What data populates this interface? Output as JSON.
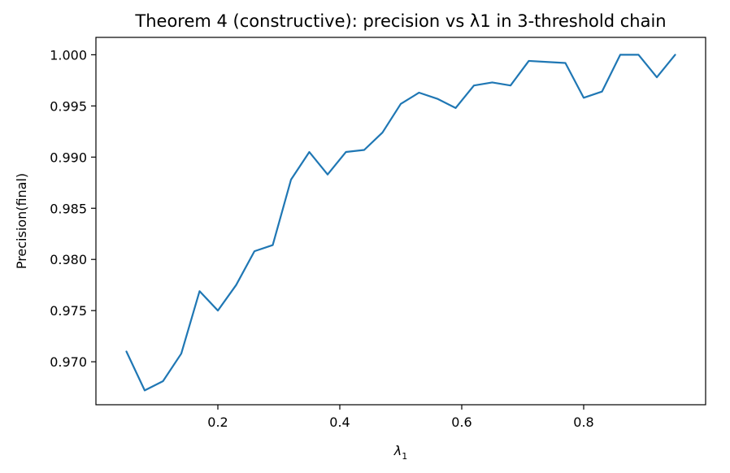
{
  "chart_data": {
    "type": "line",
    "title": "Theorem 4 (constructive): precision vs λ1 in 3-threshold chain",
    "xlabel": "λ",
    "xlabel_sub": "1",
    "ylabel": "Precision(final)",
    "xlim": [
      0.0,
      1.0
    ],
    "ylim": [
      0.9658,
      1.0017
    ],
    "xticks": [
      0.2,
      0.4,
      0.6,
      0.8
    ],
    "xtick_labels": [
      "0.2",
      "0.4",
      "0.6",
      "0.8"
    ],
    "yticks": [
      0.97,
      0.975,
      0.98,
      0.985,
      0.99,
      0.995,
      1.0
    ],
    "ytick_labels": [
      "0.970",
      "0.975",
      "0.980",
      "0.985",
      "0.990",
      "0.995",
      "1.000"
    ],
    "grid": false,
    "series": [
      {
        "color": "#1f77b4",
        "x": [
          0.05,
          0.08,
          0.11,
          0.14,
          0.17,
          0.2,
          0.23,
          0.26,
          0.29,
          0.32,
          0.35,
          0.38,
          0.41,
          0.44,
          0.47,
          0.5,
          0.53,
          0.56,
          0.59,
          0.62,
          0.65,
          0.68,
          0.71,
          0.74,
          0.77,
          0.8,
          0.83,
          0.86,
          0.89,
          0.92,
          0.95
        ],
        "y": [
          0.971,
          0.9672,
          0.9681,
          0.9708,
          0.9769,
          0.975,
          0.9775,
          0.9808,
          0.9814,
          0.9878,
          0.9905,
          0.9883,
          0.9905,
          0.9907,
          0.9924,
          0.9952,
          0.9963,
          0.9957,
          0.9948,
          0.997,
          0.9973,
          0.997,
          0.9994,
          0.9993,
          0.9992,
          0.9958,
          0.9964,
          1.0,
          1.0,
          0.9978,
          1.0
        ]
      }
    ]
  }
}
